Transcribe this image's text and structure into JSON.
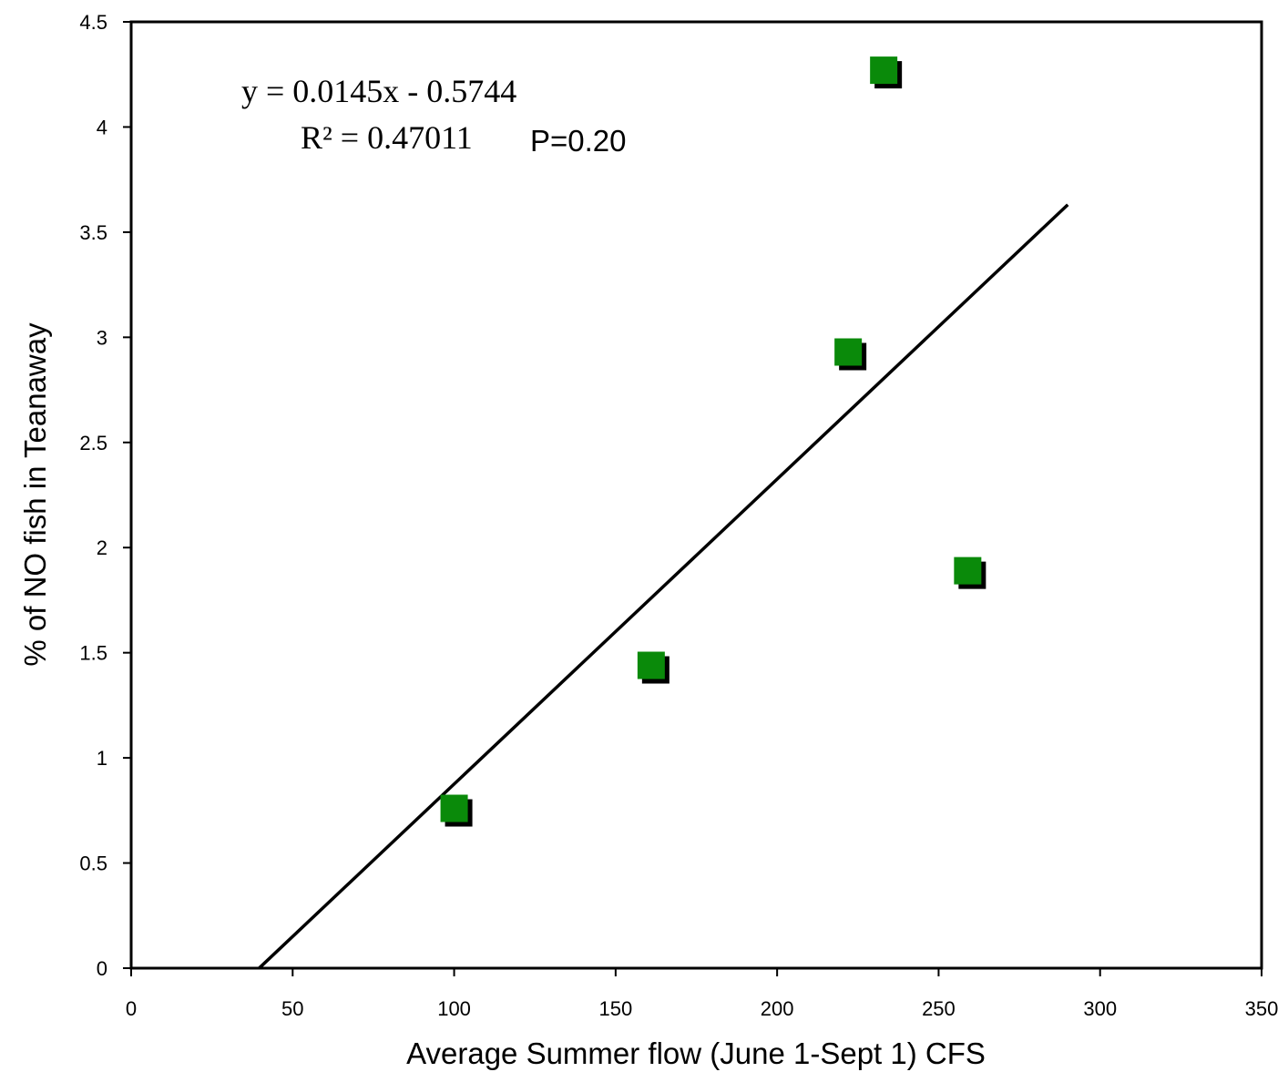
{
  "chart_data": {
    "type": "scatter",
    "title": "",
    "xlabel": "Average Summer flow (June 1-Sept 1) CFS",
    "ylabel": "% of NO fish in Teanaway",
    "xlim": [
      0,
      350
    ],
    "ylim": [
      0,
      4.5
    ],
    "x_ticks": [
      "0",
      "50",
      "100",
      "150",
      "200",
      "250",
      "300",
      "350"
    ],
    "y_ticks": [
      "0",
      "0.5",
      "1",
      "1.5",
      "2",
      "2.5",
      "3",
      "3.5",
      "4",
      "4.5"
    ],
    "grid": false,
    "legend": "none",
    "marker": "square",
    "marker_color": "#0a8a0a",
    "points": [
      {
        "x": 100,
        "y": 0.76
      },
      {
        "x": 161,
        "y": 1.44
      },
      {
        "x": 222,
        "y": 2.93
      },
      {
        "x": 233,
        "y": 4.27
      },
      {
        "x": 259,
        "y": 1.89
      }
    ],
    "trendline": {
      "slope": 0.0145,
      "intercept": -0.5744,
      "x_range": [
        39.6,
        290
      ],
      "color": "#000000"
    },
    "annotations": {
      "equation": "y = 0.0145x - 0.5744",
      "r_squared": "R² = 0.47011",
      "p_value": "P=0.20"
    }
  }
}
